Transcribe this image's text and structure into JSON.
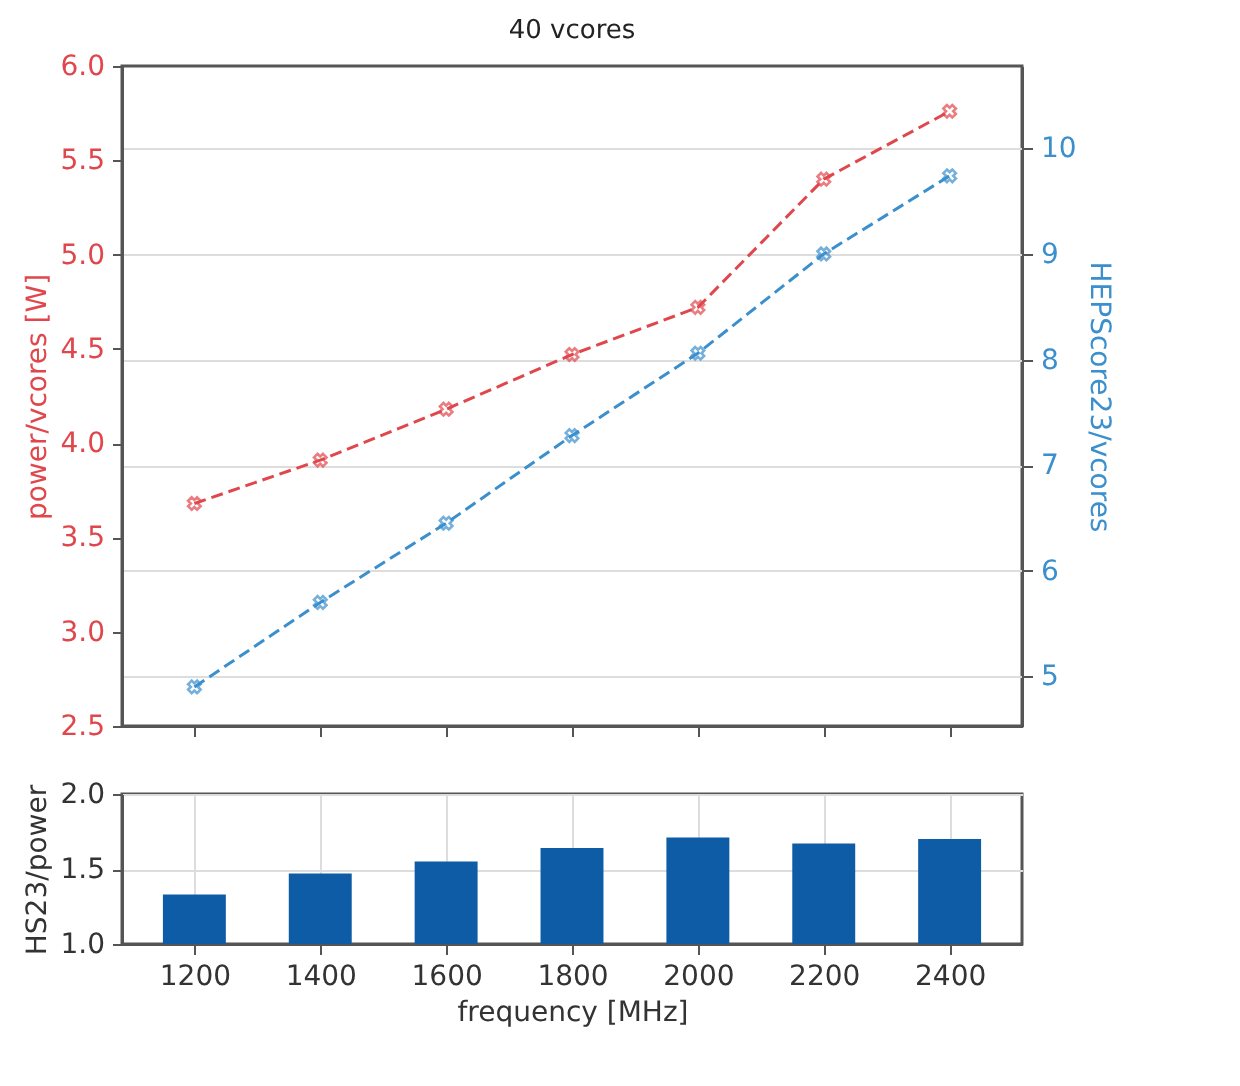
{
  "chart_data": [
    {
      "type": "line",
      "title": "40 vcores",
      "ylabel": "power/vcores [W]",
      "y2label": "HEPScore23/vcores",
      "x": [
        1200,
        1400,
        1600,
        1800,
        2000,
        2200,
        2400
      ],
      "xlim": [
        1085,
        2515
      ],
      "xticks": [
        1200,
        1400,
        1600,
        1800,
        2000,
        2200,
        2400
      ],
      "ylim": [
        2.5,
        6.0
      ],
      "yticks": [
        {
          "value": 2.5,
          "label": "2.5"
        },
        {
          "value": 3,
          "label": "3.0"
        },
        {
          "value": 3.5,
          "label": "3.5"
        },
        {
          "value": 4,
          "label": "4.0"
        },
        {
          "value": 4.5,
          "label": "4.5"
        },
        {
          "value": 5,
          "label": "5.0"
        },
        {
          "value": 5.5,
          "label": "5.5"
        },
        {
          "value": 6,
          "label": "6.0"
        }
      ],
      "y2lim": [
        4.53,
        10.78
      ],
      "y2ticks": [
        5,
        6,
        7,
        8,
        9,
        10
      ],
      "series": [
        {
          "color": "#e0474c",
          "values": [
            3.68,
            3.91,
            4.18,
            4.47,
            4.72,
            5.4,
            5.76
          ]
        },
        {
          "color": "#3a8fcc",
          "axis": "y2",
          "values": [
            4.9,
            5.7,
            6.45,
            7.28,
            8.06,
            9.0,
            9.74
          ]
        }
      ],
      "marker": "cross",
      "line_style": "dashed",
      "grid": "y",
      "tick_labels": "y"
    },
    {
      "type": "bar",
      "xlabel": "frequency [MHz]",
      "ylabel": "HS23/power",
      "x": [
        1200,
        1400,
        1600,
        1800,
        2000,
        2200,
        2400
      ],
      "values": [
        1.33,
        1.47,
        1.55,
        1.64,
        1.71,
        1.67,
        1.7
      ],
      "color": "#0f5ca6",
      "xlim": [
        1085,
        2515
      ],
      "xticks": [
        1200,
        1400,
        1600,
        1800,
        2000,
        2200,
        2400
      ],
      "ylim": [
        1.0,
        2.0
      ],
      "yticks": [
        {
          "value": 1,
          "label": "1.0"
        },
        {
          "value": 1.5,
          "label": "1.5"
        },
        {
          "value": 2,
          "label": "2.0"
        }
      ],
      "grid": true
    }
  ]
}
